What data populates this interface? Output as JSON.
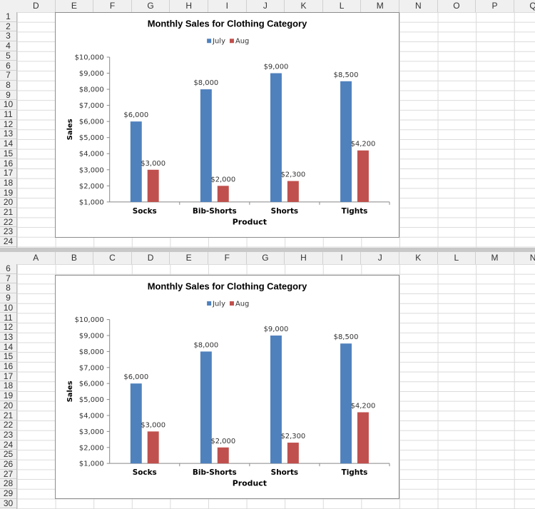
{
  "panes": [
    {
      "columns": [
        "D",
        "E",
        "F",
        "G",
        "H",
        "I",
        "J",
        "K",
        "L",
        "M",
        "N",
        "O",
        "P",
        "Q"
      ],
      "row_start": 1,
      "row_end": 24
    },
    {
      "columns": [
        "A",
        "B",
        "C",
        "D",
        "E",
        "F",
        "G",
        "H",
        "I",
        "J",
        "K",
        "L",
        "M",
        "N"
      ],
      "row_start": 6,
      "row_end": 30
    }
  ],
  "chart_data": [
    {
      "type": "bar",
      "title": "Monthly Sales for Clothing Category",
      "xlabel": "Product",
      "ylabel": "Sales",
      "categories": [
        "Socks",
        "Bib-Shorts",
        "Shorts",
        "Tights"
      ],
      "series": [
        {
          "name": "July",
          "color": "#4f81bd",
          "values": [
            6000,
            8000,
            9000,
            8500
          ],
          "labels": [
            "$6,000",
            "$8,000",
            "$9,000",
            "$8,500"
          ]
        },
        {
          "name": "Aug",
          "color": "#c0504d",
          "values": [
            3000,
            2000,
            2300,
            4200
          ],
          "labels": [
            "$3,000",
            "$2,000",
            "$2,300",
            "$4,200"
          ]
        }
      ],
      "ylim": [
        1000,
        10000
      ],
      "yticks": [
        "$1,000",
        "$2,000",
        "$3,000",
        "$4,000",
        "$5,000",
        "$6,000",
        "$7,000",
        "$8,000",
        "$9,000",
        "$10,000"
      ],
      "legend": "top",
      "grid": false
    },
    {
      "type": "bar",
      "title": "Monthly Sales for Clothing Category",
      "xlabel": "Product",
      "ylabel": "Sales",
      "categories": [
        "Socks",
        "Bib-Shorts",
        "Shorts",
        "Tights"
      ],
      "series": [
        {
          "name": "July",
          "color": "#4f81bd",
          "values": [
            6000,
            8000,
            9000,
            8500
          ],
          "labels": [
            "$6,000",
            "$8,000",
            "$9,000",
            "$8,500"
          ]
        },
        {
          "name": "Aug",
          "color": "#c0504d",
          "values": [
            3000,
            2000,
            2300,
            4200
          ],
          "labels": [
            "$3,000",
            "$2,000",
            "$2,300",
            "$4,200"
          ]
        }
      ],
      "ylim": [
        1000,
        10000
      ],
      "yticks": [
        "$1,000",
        "$2,000",
        "$3,000",
        "$4,000",
        "$5,000",
        "$6,000",
        "$7,000",
        "$8,000",
        "$9,000",
        "$10,000"
      ],
      "legend": "top",
      "grid": false
    }
  ]
}
